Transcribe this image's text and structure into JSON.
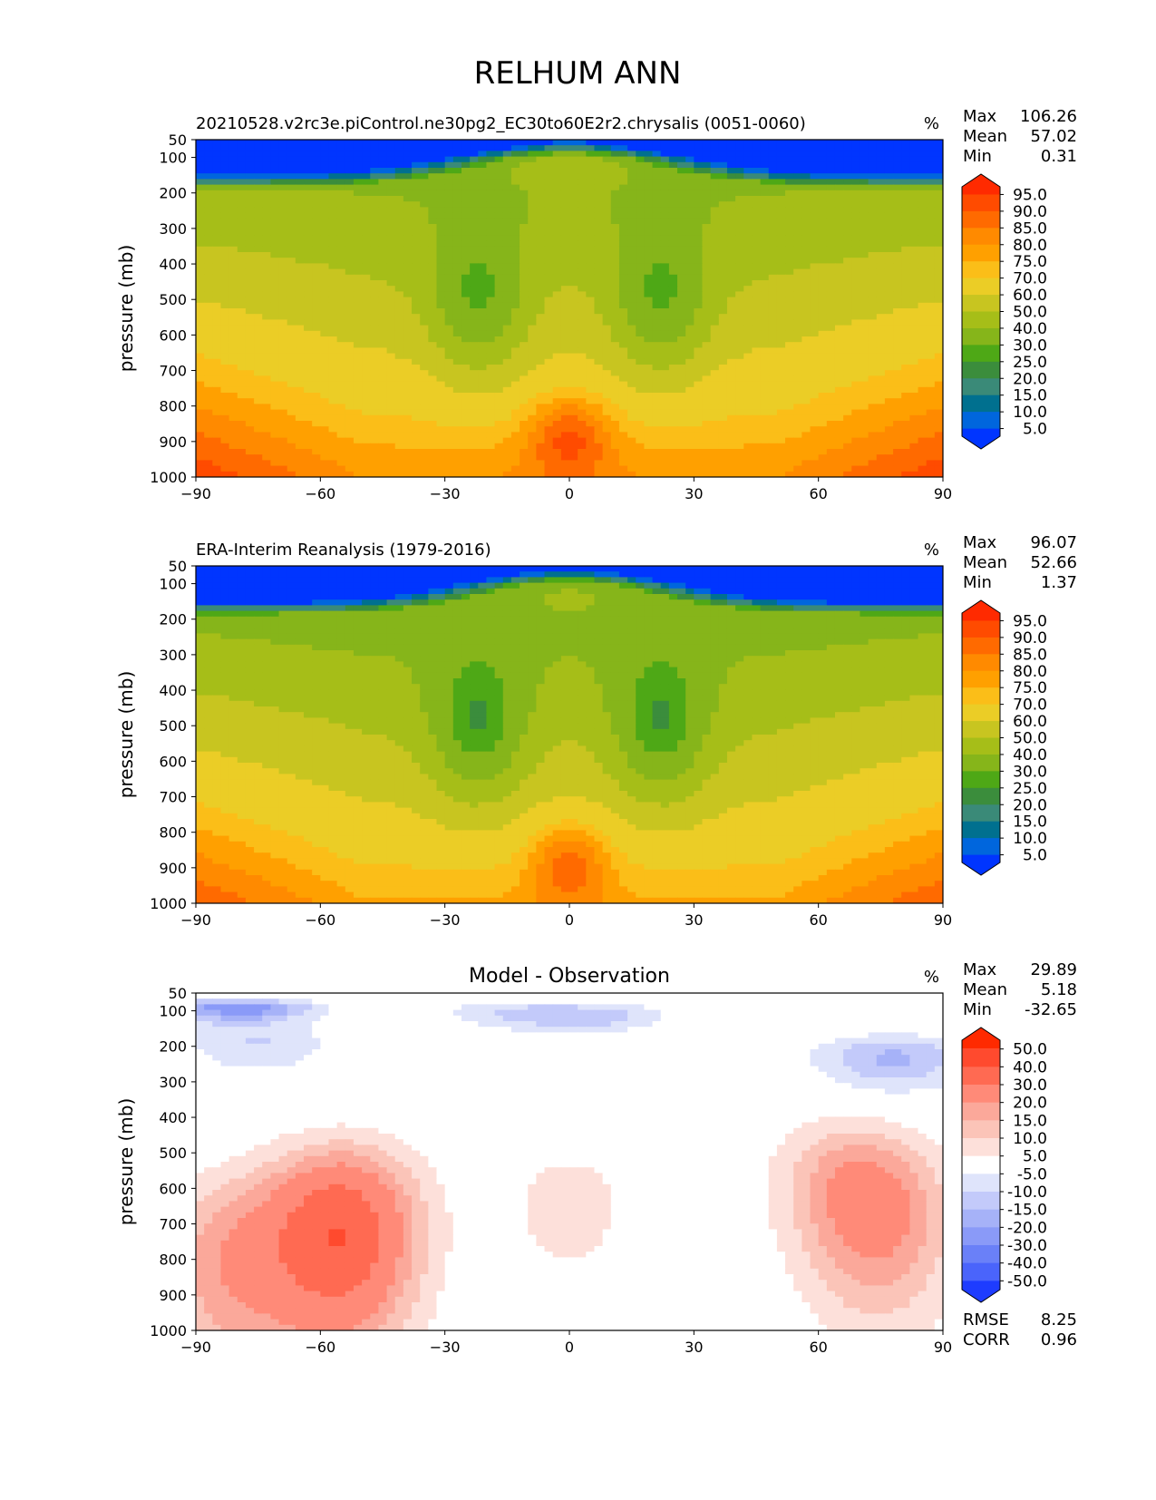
{
  "figure": {
    "title": "RELHUM ANN"
  },
  "chart_data": [
    {
      "type": "heatmap",
      "title": "20210528.v2rc3e.piControl.ne30pg2_EC30to60E2r2.chrysalis (0051-0060)",
      "units": "%",
      "ylabel": "pressure (mb)",
      "xlabel": "",
      "xlim": [
        -90,
        90
      ],
      "ylim": [
        1000,
        50
      ],
      "xticks": [
        "−90",
        "−60",
        "−30",
        "0",
        "30",
        "60",
        "90"
      ],
      "yticks": [
        "50",
        "100",
        "200",
        "300",
        "400",
        "500",
        "600",
        "700",
        "800",
        "900",
        "1000"
      ],
      "stats": [
        {
          "label": "Max",
          "value": "106.26"
        },
        {
          "label": "Mean",
          "value": "57.02"
        },
        {
          "label": "Min",
          "value": "0.31"
        }
      ],
      "colorbar": {
        "extend": "both",
        "levels": [
          "95.0",
          "90.0",
          "85.0",
          "80.0",
          "75.0",
          "70.0",
          "60.0",
          "50.0",
          "40.0",
          "30.0",
          "25.0",
          "20.0",
          "15.0",
          "10.0",
          "5.0"
        ],
        "colors": [
          "#ff2a00",
          "#ff4b00",
          "#ff6a00",
          "#ff8a00",
          "#ffa000",
          "#fbbe18",
          "#ebcd26",
          "#c8c520",
          "#a6be18",
          "#86b51a",
          "#4ea816",
          "#3b8d3c",
          "#3a8a78",
          "#00708f",
          "#0066dd",
          "#0035ff"
        ]
      },
      "anomalies": []
    },
    {
      "type": "heatmap",
      "title": "ERA-Interim Reanalysis (1979-2016)",
      "units": "%",
      "ylabel": "pressure (mb)",
      "xlabel": "",
      "xlim": [
        -90,
        90
      ],
      "ylim": [
        1000,
        50
      ],
      "xticks": [
        "−90",
        "−60",
        "−30",
        "0",
        "30",
        "60",
        "90"
      ],
      "yticks": [
        "50",
        "100",
        "200",
        "300",
        "400",
        "500",
        "600",
        "700",
        "800",
        "900",
        "1000"
      ],
      "stats": [
        {
          "label": "Max",
          "value": "96.07"
        },
        {
          "label": "Mean",
          "value": "52.66"
        },
        {
          "label": "Min",
          "value": "1.37"
        }
      ],
      "colorbar": {
        "extend": "both",
        "levels": [
          "95.0",
          "90.0",
          "85.0",
          "80.0",
          "75.0",
          "70.0",
          "60.0",
          "50.0",
          "40.0",
          "30.0",
          "25.0",
          "20.0",
          "15.0",
          "10.0",
          "5.0"
        ],
        "colors": [
          "#ff2a00",
          "#ff4b00",
          "#ff6a00",
          "#ff8a00",
          "#ffa000",
          "#fbbe18",
          "#ebcd26",
          "#c8c520",
          "#a6be18",
          "#86b51a",
          "#4ea816",
          "#3b8d3c",
          "#3a8a78",
          "#00708f",
          "#0066dd",
          "#0035ff"
        ]
      },
      "anomalies": []
    },
    {
      "type": "heatmap",
      "title": "Model - Observation",
      "units": "%",
      "ylabel": "pressure (mb)",
      "xlabel": "",
      "xlim": [
        -90,
        90
      ],
      "ylim": [
        1000,
        50
      ],
      "xticks": [
        "−90",
        "−60",
        "−30",
        "0",
        "30",
        "60",
        "90"
      ],
      "yticks": [
        "50",
        "100",
        "200",
        "300",
        "400",
        "500",
        "600",
        "700",
        "800",
        "900",
        "1000"
      ],
      "stats": [
        {
          "label": "Max",
          "value": "29.89"
        },
        {
          "label": "Mean",
          "value": "5.18"
        },
        {
          "label": "Min",
          "value": "-32.65"
        }
      ],
      "colorbar": {
        "extend": "both",
        "levels": [
          "50.0",
          "40.0",
          "30.0",
          "20.0",
          "15.0",
          "10.0",
          "5.0",
          "-5.0",
          "-10.0",
          "-15.0",
          "-20.0",
          "-30.0",
          "-40.0",
          "-50.0"
        ],
        "colors": [
          "#ff2a00",
          "#ff4a2e",
          "#ff6a52",
          "#ff8a78",
          "#fba89a",
          "#fbc4b8",
          "#fde0da",
          "#ffffff",
          "#dfe4fb",
          "#c3cafa",
          "#a6b2f8",
          "#8a9af8",
          "#6a80f8",
          "#4a64fb",
          "#1e3cff"
        ]
      },
      "anomalies": [
        {
          "lat": -55,
          "pressure": 790,
          "value": 25
        },
        {
          "lat": -55,
          "pressure": 640,
          "value": 17
        },
        {
          "lat": -82,
          "pressure": 820,
          "value": 18
        },
        {
          "lat": 75,
          "pressure": 720,
          "value": 17
        },
        {
          "lat": 68,
          "pressure": 560,
          "value": 14
        },
        {
          "lat": 0,
          "pressure": 650,
          "value": 7
        },
        {
          "lat": -80,
          "pressure": 90,
          "value": -25
        },
        {
          "lat": -75,
          "pressure": 190,
          "value": -10
        },
        {
          "lat": 78,
          "pressure": 230,
          "value": -16
        },
        {
          "lat": 5,
          "pressure": 110,
          "value": -12
        },
        {
          "lat": -15,
          "pressure": 100,
          "value": -8
        }
      ],
      "summary": [
        {
          "label": "RMSE",
          "value": "8.25"
        },
        {
          "label": "CORR",
          "value": "0.96"
        }
      ]
    }
  ]
}
